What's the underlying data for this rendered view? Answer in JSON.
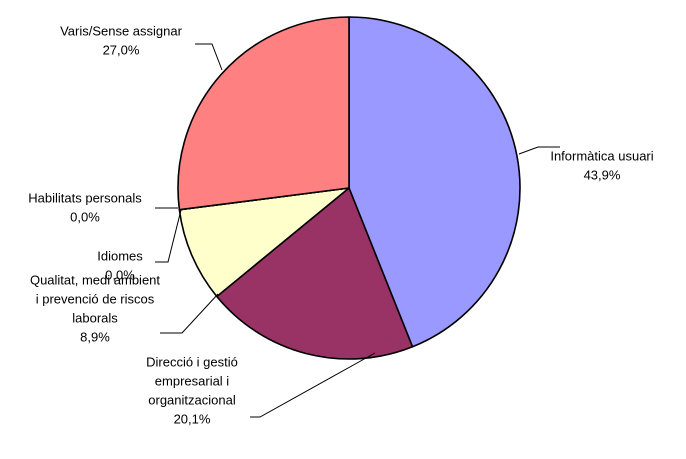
{
  "chart_data": {
    "type": "pie",
    "title": "",
    "slices": [
      {
        "label": [
          "Informàtica usuari"
        ],
        "value_label": "43,9%",
        "value": 43.9,
        "color": "#9999ff"
      },
      {
        "label": [
          "Direcció i gestió",
          "empresarial i",
          "organitzacional"
        ],
        "value_label": "20,1%",
        "value": 20.1,
        "color": "#993366"
      },
      {
        "label": [
          "Qualitat, medi ambient",
          "i prevenció de riscos",
          "laborals"
        ],
        "value_label": "8,9%",
        "value": 8.9,
        "color": "#ffffcc"
      },
      {
        "label": [
          "Idiomes"
        ],
        "value_label": "0,0%",
        "value": 0.0,
        "color": "#ccffff"
      },
      {
        "label": [
          "Habilitats personals"
        ],
        "value_label": "0,0%",
        "value": 0.0,
        "color": "#660066"
      },
      {
        "label": [
          "Varis/Sense assignar"
        ],
        "value_label": "27,0%",
        "value": 27.0,
        "color": "#ff8080"
      }
    ],
    "start_angle_deg": 0,
    "direction": "clockwise",
    "legend": "none"
  }
}
